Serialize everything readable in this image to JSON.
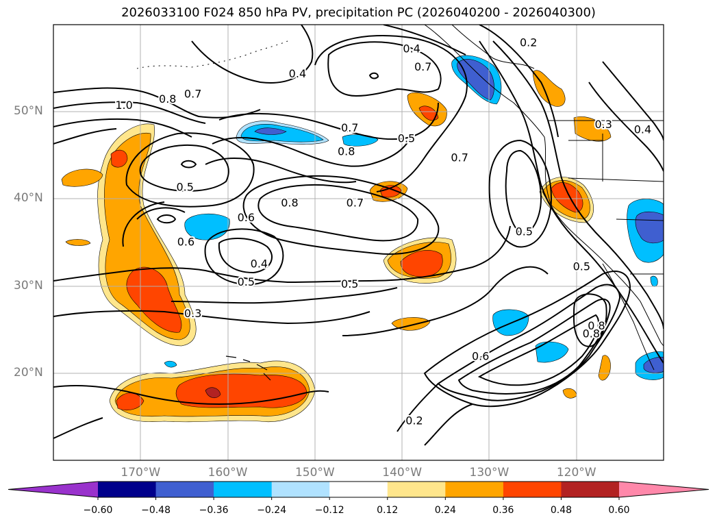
{
  "title": "2026033100 F024 850 hPa PV, precipitation PC (2026040200 - 2026040300)",
  "lat_labels": [
    {
      "text": "50°N",
      "lat": 50
    },
    {
      "text": "40°N",
      "lat": 40
    },
    {
      "text": "30°N",
      "lat": 30
    },
    {
      "text": "20°N",
      "lat": 20
    }
  ],
  "lon_labels": [
    {
      "text": "170°W",
      "lon": -170
    },
    {
      "text": "160°W",
      "lon": -160
    },
    {
      "text": "150°W",
      "lon": -150
    },
    {
      "text": "140°W",
      "lon": -140
    },
    {
      "text": "130°W",
      "lon": -130
    },
    {
      "text": "120°W",
      "lon": -120
    }
  ],
  "map_extent": {
    "lon_min": -180,
    "lon_max": -110,
    "lat_min": 10,
    "lat_max": 60
  },
  "contour_labels": [
    {
      "text": "0.4",
      "lon": -152.0,
      "lat": 54.4
    },
    {
      "text": "0.7",
      "lon": -164.0,
      "lat": 52.1
    },
    {
      "text": "0.8",
      "lon": -166.9,
      "lat": 51.5
    },
    {
      "text": "1.0",
      "lon": -171.9,
      "lat": 50.8
    },
    {
      "text": "0.7",
      "lon": -146.0,
      "lat": 48.2
    },
    {
      "text": "0.8",
      "lon": -146.4,
      "lat": 45.5
    },
    {
      "text": "0.5",
      "lon": -139.5,
      "lat": 47.0
    },
    {
      "text": "0.7",
      "lon": -133.4,
      "lat": 44.8
    },
    {
      "text": "0.4",
      "lon": -138.9,
      "lat": 57.3
    },
    {
      "text": "0.7",
      "lon": -137.6,
      "lat": 55.2
    },
    {
      "text": "0.2",
      "lon": -125.5,
      "lat": 58.0
    },
    {
      "text": "0.5",
      "lon": -164.9,
      "lat": 41.4
    },
    {
      "text": "0.8",
      "lon": -152.9,
      "lat": 39.6
    },
    {
      "text": "0.7",
      "lon": -145.4,
      "lat": 39.6
    },
    {
      "text": "0.6",
      "lon": -157.9,
      "lat": 37.9
    },
    {
      "text": "0.6",
      "lon": -164.8,
      "lat": 35.1
    },
    {
      "text": "0.4",
      "lon": -156.4,
      "lat": 32.6
    },
    {
      "text": "0.5",
      "lon": -157.9,
      "lat": 30.5
    },
    {
      "text": "0.5",
      "lon": -146.0,
      "lat": 30.3
    },
    {
      "text": "0.3",
      "lon": -164.0,
      "lat": 26.9
    },
    {
      "text": "0.5",
      "lon": -126.0,
      "lat": 36.3
    },
    {
      "text": "0.5",
      "lon": -119.4,
      "lat": 32.3
    },
    {
      "text": "0.3",
      "lon": -116.9,
      "lat": 48.6
    },
    {
      "text": "0.4",
      "lon": -112.4,
      "lat": 48.0
    },
    {
      "text": "0.6",
      "lon": -131.0,
      "lat": 22.0
    },
    {
      "text": "0.8",
      "lon": -117.7,
      "lat": 25.5
    },
    {
      "text": "0.8",
      "lon": -118.3,
      "lat": 24.6
    },
    {
      "text": "0.2",
      "lon": -138.6,
      "lat": 14.6
    }
  ],
  "colorbar": {
    "ticks": [
      "−0.60",
      "−0.48",
      "−0.36",
      "−0.24",
      "−0.12",
      "0.12",
      "0.24",
      "0.36",
      "0.48",
      "0.60"
    ],
    "colors": [
      "#9932cc",
      "#00008b",
      "#3f5fd0",
      "#00bfff",
      "#b0e2ff",
      "#ffffff",
      "#ffe68c",
      "#ffa500",
      "#ff4500",
      "#b22222",
      "#ff88aa"
    ]
  },
  "colors": {
    "neg_strong": "#3f5fd0",
    "neg_mid": "#00bfff",
    "neg_weak": "#b0e2ff",
    "pos_weak": "#ffe68c",
    "pos_mid": "#ffa500",
    "pos_strong": "#ff4500",
    "pos_max": "#b22222",
    "grid": "#b0b0b0"
  }
}
